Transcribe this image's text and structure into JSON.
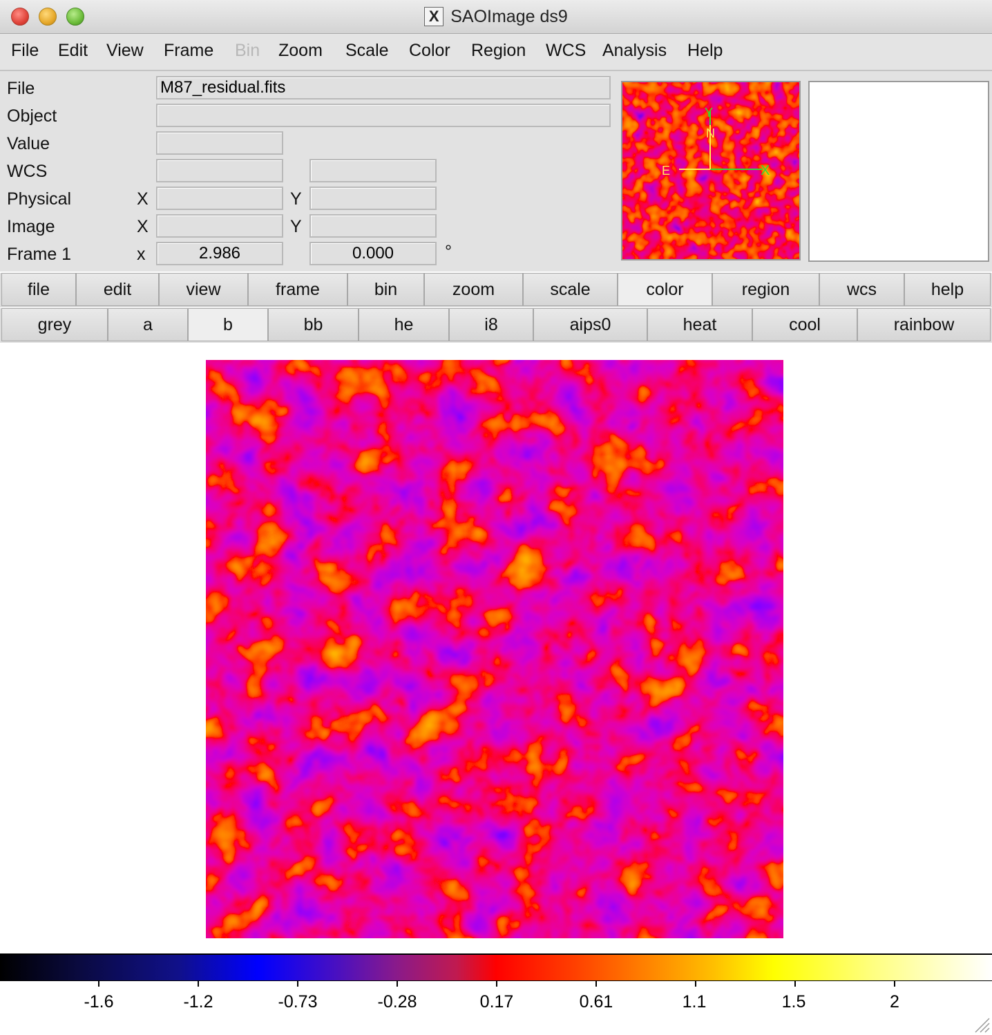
{
  "window": {
    "title": "SAOImage ds9"
  },
  "menubar": [
    "File",
    "Edit",
    "View",
    "Frame",
    "Bin",
    "Zoom",
    "Scale",
    "Color",
    "Region",
    "WCS",
    "Analysis",
    "Help"
  ],
  "menubar_disabled": [
    "Bin"
  ],
  "info": {
    "file_label": "File",
    "file_value": "M87_residual.fits",
    "object_label": "Object",
    "object_value": "",
    "value_label": "Value",
    "value_value": "",
    "wcs_label": "WCS",
    "physical_label": "Physical",
    "image_label": "Image",
    "x_label": "X",
    "y_label": "Y",
    "frame_label": "Frame 1",
    "frame_x_label": "x",
    "zoom_value": "2.986",
    "angle_value": "0.000",
    "degree_symbol": "°"
  },
  "panner": {
    "north": "N",
    "east": "E",
    "x_axis": "X",
    "y_axis": "Y"
  },
  "buttonbar": [
    "file",
    "edit",
    "view",
    "frame",
    "bin",
    "zoom",
    "scale",
    "color",
    "region",
    "wcs",
    "help"
  ],
  "buttonbar_active": "color",
  "colormaps": [
    "grey",
    "a",
    "b",
    "bb",
    "he",
    "i8",
    "aips0",
    "heat",
    "cool",
    "rainbow"
  ],
  "colormap_active": "b",
  "colorbar": {
    "ticks": [
      "-1.6",
      "-1.2",
      "-0.73",
      "-0.28",
      "0.17",
      "0.61",
      "1.1",
      "1.5",
      "2"
    ]
  },
  "colors": {
    "menubar_bg": "#e4e4e4",
    "panel_bg": "#e2e2e2",
    "image_colormap": "b"
  }
}
